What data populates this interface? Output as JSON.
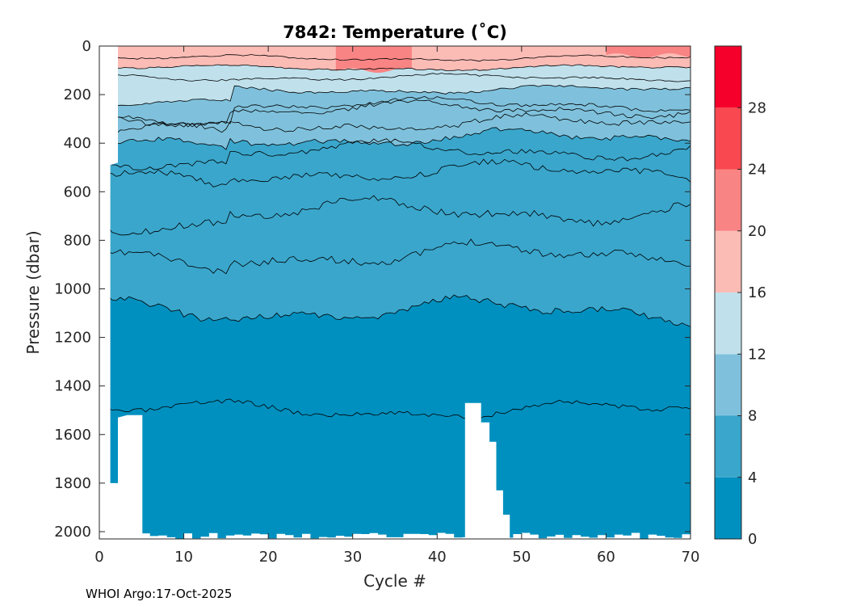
{
  "chart_data": {
    "type": "heatmap",
    "subtype": "filled-contour",
    "title": "7842:  Temperature (˚C)",
    "xlabel": "Cycle #",
    "ylabel": "Pressure (dbar)",
    "xlim": [
      0,
      70
    ],
    "ylim": [
      2000,
      0
    ],
    "x_ticks": [
      "0",
      "10",
      "20",
      "30",
      "40",
      "50",
      "60",
      "70"
    ],
    "y_ticks": [
      "0",
      "200",
      "400",
      "600",
      "800",
      "1000",
      "1200",
      "1400",
      "1600",
      "1800",
      "2000"
    ],
    "colorbar": {
      "levels": [
        0,
        4,
        8,
        12,
        16,
        20,
        24,
        28,
        32
      ],
      "tick_labels": [
        "0",
        "4",
        "8",
        "12",
        "16",
        "20",
        "24",
        "28"
      ],
      "colors": [
        "#0090bf",
        "#3aa6cc",
        "#7fc1dc",
        "#c0e1ec",
        "#fcbcb6",
        "#f98484",
        "#f9484f",
        "#f5002b"
      ]
    },
    "approx_isotherm_depths_dbar": [
      {
        "temperature_c": 20,
        "depth_at_start": 0,
        "depth_mid_profile": 40,
        "note": "patches near cycles 28-37"
      },
      {
        "temperature_c": 16,
        "depth_at_start": 120,
        "depth_mid_profile": 110
      },
      {
        "temperature_c": 12,
        "depth_at_start": 230,
        "depth_mid_profile": 230
      },
      {
        "temperature_c": 8,
        "depth_at_start": 500,
        "depth_mid_profile": 460
      },
      {
        "temperature_c": 4,
        "depth_at_start": 1120,
        "depth_mid_profile": 1060
      }
    ],
    "data_gaps": [
      {
        "cycles": [
          0,
          1
        ],
        "note": "no data"
      },
      {
        "cycles": [
          43,
          45
        ],
        "max_depth_dbar": 1470
      }
    ]
  },
  "footer": "WHOI Argo:17-Oct-2025"
}
